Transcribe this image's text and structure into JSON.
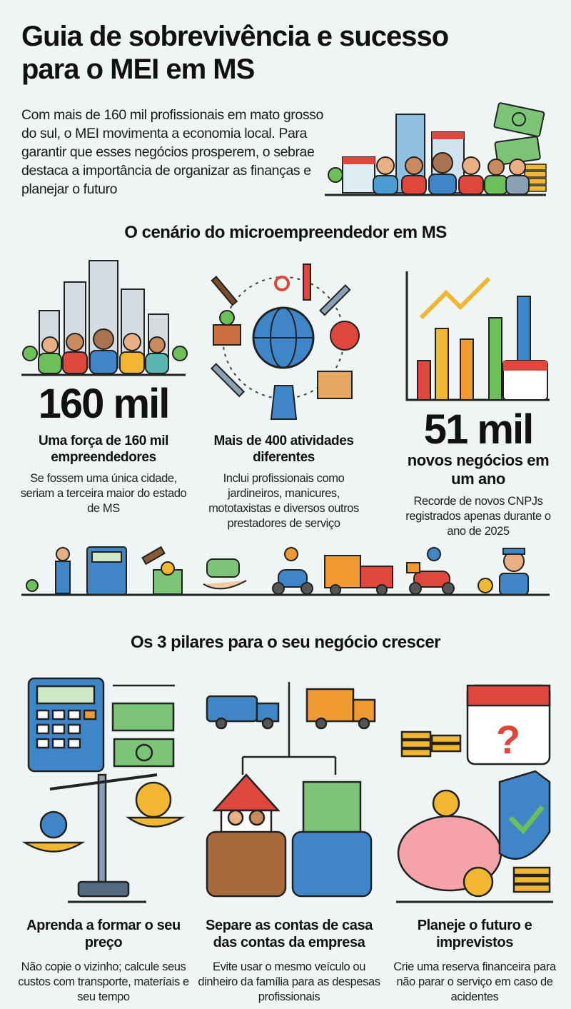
{
  "header": {
    "title": "Guia de sobrevivência e sucesso para o MEI em MS",
    "intro": "Com mais de 160 mil profissionais em mato grosso do sul, o MEI movimenta a economia local. Para garantir que esses negócios prosperem, o sebrae destaca a importância de organizar as finanças e planejar o futuro"
  },
  "scenario": {
    "heading": "O cenário do microempreendedor em MS",
    "stats": [
      {
        "value": "160 mil",
        "title": "Uma força de 160 mil empreendedores",
        "desc": "Se fossem uma única cidade, seriam a terceira maior do estado de MS"
      },
      {
        "title": "Mais de 400 atividades diferentes",
        "desc": "Inclui profissionais como jardineiros, manicures, mototaxistas e diversos outros prestadores de serviço"
      },
      {
        "value": "51 mil",
        "title": "novos negócios em um ano",
        "desc": "Recorde de novos CNPJs registrados apenas durante o ano de 2025"
      }
    ]
  },
  "pillars": {
    "heading": "Os 3 pilares para o seu negócio crescer",
    "items": [
      {
        "title": "Aprenda a formar o seu preço",
        "desc": "Não copie o vizinho; calcule seus custos com transporte, materíais e seu tempo"
      },
      {
        "title": "Separe as contas de casa das contas da empresa",
        "desc": "Evite usar o mesmo veículo ou dinheiro da família para as despesas profissionais"
      },
      {
        "title": "Planeje o futuro e imprevistos",
        "desc": "Crie uma reserva financeira para não parar o serviço em caso de acidentes"
      }
    ]
  },
  "colors": {
    "background": "#eef5f4",
    "green": "#6dbf5a",
    "blue": "#3f86c8",
    "red": "#e0473c",
    "yellow": "#f2b731",
    "orange": "#f29a32"
  }
}
